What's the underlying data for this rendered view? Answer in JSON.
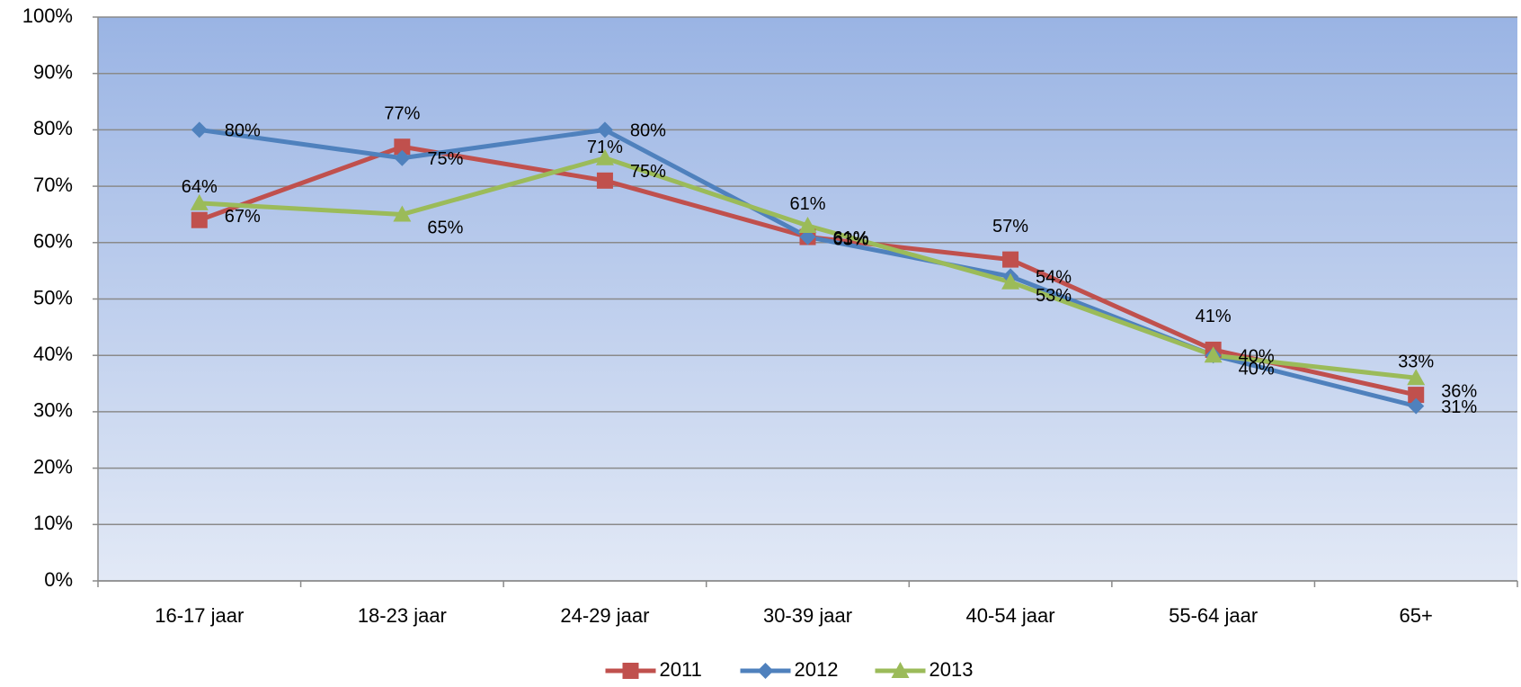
{
  "chart_data": {
    "type": "line",
    "categories": [
      "16-17 jaar",
      "18-23 jaar",
      "24-29 jaar",
      "30-39 jaar",
      "40-54 jaar",
      "55-64 jaar",
      "65+"
    ],
    "series": [
      {
        "name": "2011",
        "color": "#c0504d",
        "marker": "square",
        "values": [
          64,
          77,
          71,
          61,
          57,
          41,
          33
        ],
        "value_labels": [
          "64%",
          "77%",
          "71%",
          "61%",
          "57%",
          "41%",
          "33%"
        ]
      },
      {
        "name": "2012",
        "color": "#4f81bd",
        "marker": "diamond",
        "values": [
          80,
          75,
          80,
          61,
          54,
          40,
          31
        ],
        "value_labels": [
          "80%",
          "75%",
          "80%",
          "61%",
          "54%",
          "40%",
          "31%"
        ]
      },
      {
        "name": "2013",
        "color": "#9bbb59",
        "marker": "triangle",
        "values": [
          67,
          65,
          75,
          63,
          53,
          40,
          36
        ],
        "value_labels": [
          "67%",
          "65%",
          "75%",
          "63%",
          "53%",
          "40%",
          "36%"
        ]
      }
    ],
    "ylim": [
      0,
      100
    ],
    "yticks": [
      {
        "value": 0,
        "label": "0%"
      },
      {
        "value": 10,
        "label": "10%"
      },
      {
        "value": 20,
        "label": "20%"
      },
      {
        "value": 30,
        "label": "30%"
      },
      {
        "value": 40,
        "label": "40%"
      },
      {
        "value": 50,
        "label": "50%"
      },
      {
        "value": 60,
        "label": "60%"
      },
      {
        "value": 70,
        "label": "70%"
      },
      {
        "value": 80,
        "label": "80%"
      },
      {
        "value": 90,
        "label": "90%"
      },
      {
        "value": 100,
        "label": "100%"
      }
    ],
    "grid": true,
    "legend": "bottom"
  }
}
